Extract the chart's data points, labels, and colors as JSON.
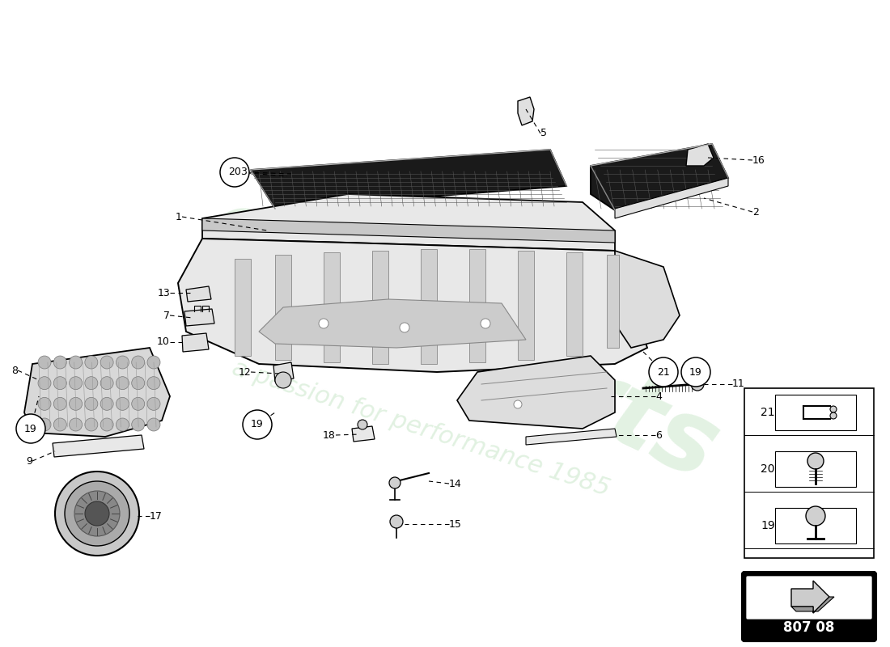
{
  "background_color": "#ffffff",
  "part_number": "807 08",
  "watermark_color": "#c8e6c8",
  "fig_width": 11.0,
  "fig_height": 8.0
}
